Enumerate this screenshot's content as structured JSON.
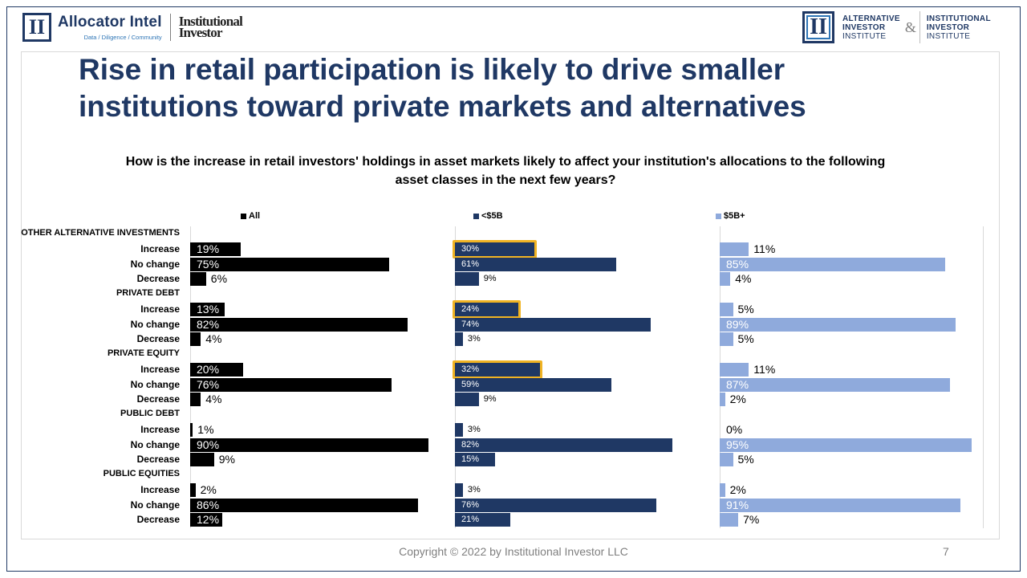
{
  "header": {
    "left_logo_mark": "II",
    "left_logo_name": "Allocator Intel",
    "left_logo_tagline": "Data / Diligence / Community",
    "left_logo_second_line1": "Institutional",
    "left_logo_second_line2": "Investor",
    "right_logo_mark": "II",
    "right_logo_a1": "ALTERNATIVE",
    "right_logo_a2": "INVESTOR",
    "right_logo_a3": "INSTITUTE",
    "right_logo_amp": "&",
    "right_logo_b1": "INSTITUTIONAL",
    "right_logo_b2": "INVESTOR",
    "right_logo_b3": "INSTITUTE"
  },
  "title_line1": "Rise in retail participation is likely to drive smaller",
  "title_line2": "institutions toward private markets and alternatives",
  "question_line1": "How is the increase in retail investors' holdings in asset markets likely to affect your institution's allocations to the following",
  "question_line2": "asset classes in the next few years?",
  "footer": {
    "copyright": "Copyright © 2022 by Institutional Investor LLC",
    "page": "7"
  },
  "colors": {
    "all": "#000000",
    "small": "#1f3864",
    "large": "#8faadc",
    "highlight": "#f0b323"
  },
  "chart_data": {
    "type": "bar",
    "orientation": "horizontal",
    "groups": [
      "OTHER ALTERNATIVE INVESTMENTS",
      "PRIVATE DEBT",
      "PRIVATE EQUITY",
      "PUBLIC DEBT",
      "PUBLIC EQUITIES"
    ],
    "responses": [
      "Increase",
      "No change",
      "Decrease"
    ],
    "series": [
      {
        "name": "All",
        "values": [
          [
            19,
            75,
            6
          ],
          [
            13,
            82,
            4
          ],
          [
            20,
            76,
            4
          ],
          [
            1,
            90,
            9
          ],
          [
            2,
            86,
            12
          ]
        ]
      },
      {
        "name": "<$5B",
        "values": [
          [
            30,
            61,
            9
          ],
          [
            24,
            74,
            3
          ],
          [
            32,
            59,
            9
          ],
          [
            3,
            82,
            15
          ],
          [
            3,
            76,
            21
          ]
        ]
      },
      {
        "name": "$5B+",
        "values": [
          [
            11,
            85,
            4
          ],
          [
            5,
            89,
            5
          ],
          [
            11,
            87,
            2
          ],
          [
            0,
            95,
            5
          ],
          [
            2,
            91,
            7
          ]
        ]
      }
    ],
    "highlighted": [
      {
        "series": "<$5B",
        "group": "OTHER ALTERNATIVE INVESTMENTS",
        "response": "Increase"
      },
      {
        "series": "<$5B",
        "group": "PRIVATE DEBT",
        "response": "Increase"
      },
      {
        "series": "<$5B",
        "group": "PRIVATE EQUITY",
        "response": "Increase"
      }
    ],
    "value_suffix": "%",
    "xlim": [
      0,
      100
    ],
    "legend_position": "top"
  }
}
